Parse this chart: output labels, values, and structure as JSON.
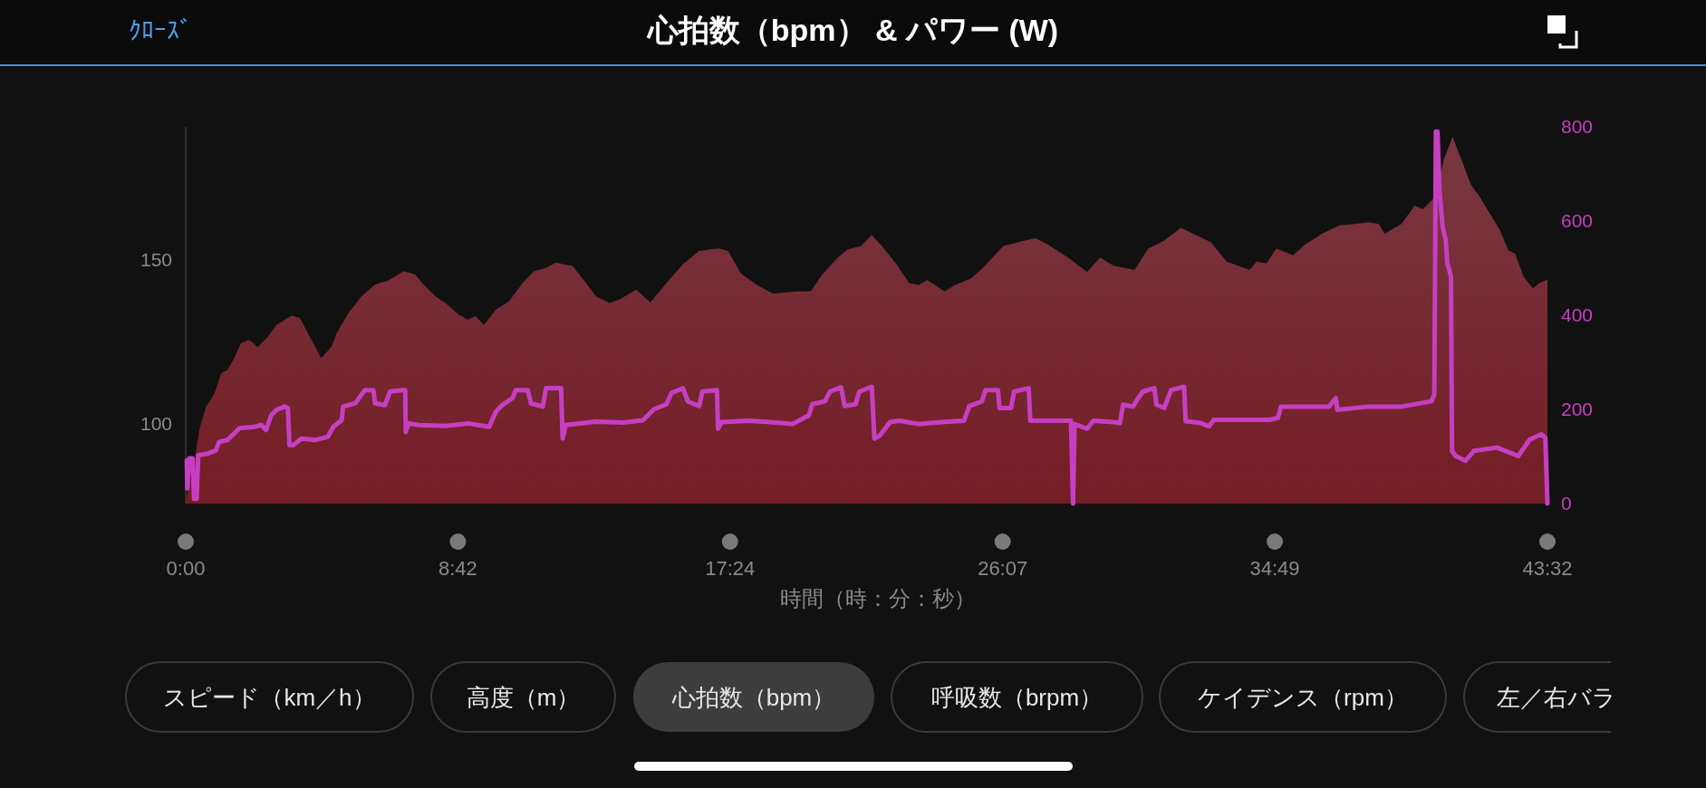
{
  "chart_data": {
    "type": "line",
    "title": "心拍数（bpm） & パワー (W)",
    "xlabel": "時間（時：分：秒）",
    "annotations": [
      "ｸﾛｰｽﾞ",
      "スピード（km／h）",
      "高度（m）",
      "心拍数（bpm）",
      "呼吸数（brpm）",
      "ケイデンス（rpm）",
      "左／右バラ"
    ],
    "xlim": [
      0,
      2612
    ],
    "xticks": [
      {
        "value": 0,
        "label": "0:00"
      },
      {
        "value": 522,
        "label": "8:42"
      },
      {
        "value": 1044,
        "label": "17:24"
      },
      {
        "value": 1567,
        "label": "26:07"
      },
      {
        "value": 2089,
        "label": "34:49"
      },
      {
        "value": 2612,
        "label": "43:32"
      }
    ],
    "ylim": [
      75.5,
      190.8
    ],
    "yticks": [
      100,
      150
    ],
    "y2lim": [
      0,
      800
    ],
    "y2ticks": [
      0,
      200,
      400,
      600,
      800
    ],
    "series": [
      {
        "type": "area",
        "color": "#6d2631",
        "x": [
          0,
          16,
          26,
          39,
          55,
          68,
          80,
          93,
          106,
          122,
          138,
          158,
          174,
          203,
          219,
          238,
          260,
          280,
          289,
          312,
          337,
          363,
          389,
          418,
          440,
          456,
          479,
          498,
          524,
          540,
          556,
          572,
          595,
          620,
          646,
          668,
          691,
          710,
          742,
          768,
          787,
          813,
          832,
          864,
          891,
          922,
          954,
          985,
          1022,
          1040,
          1065,
          1096,
          1127,
          1171,
          1199,
          1220,
          1251,
          1270,
          1295,
          1316,
          1338,
          1363,
          1388,
          1406,
          1422,
          1456,
          1475,
          1506,
          1530,
          1568,
          1605,
          1630,
          1654,
          1692,
          1729,
          1754,
          1779,
          1789,
          1820,
          1846,
          1877,
          1909,
          1940,
          1966,
          1997,
          2041,
          2054,
          2073,
          2092,
          2124,
          2149,
          2180,
          2212,
          2244,
          2269,
          2288,
          2300,
          2332,
          2357,
          2373,
          2392,
          2398,
          2414,
          2430,
          2446,
          2465,
          2483,
          2502,
          2521,
          2537,
          2550,
          2566,
          2584,
          2597,
          2612
        ],
        "values": [
          76.4,
          87.7,
          98.0,
          105.1,
          109.2,
          115.4,
          116.4,
          120.0,
          124.6,
          125.6,
          123.4,
          126.6,
          130.2,
          133.0,
          132.3,
          126.6,
          120.0,
          123.6,
          127.5,
          133.8,
          138.9,
          142.5,
          143.8,
          146.6,
          145.6,
          142.5,
          138.9,
          136.9,
          133.3,
          131.8,
          132.8,
          130.2,
          134.8,
          137.4,
          143.0,
          146.6,
          147.6,
          149.2,
          148.2,
          143.0,
          138.9,
          136.9,
          137.9,
          141.0,
          137.0,
          142.9,
          148.8,
          152.8,
          153.6,
          152.8,
          145.9,
          142.4,
          139.7,
          140.4,
          140.4,
          145.4,
          150.8,
          153.3,
          154.3,
          157.7,
          153.8,
          148.8,
          142.9,
          142.4,
          143.9,
          140.4,
          142.4,
          144.4,
          147.8,
          154.3,
          155.8,
          156.7,
          154.8,
          150.8,
          146.4,
          150.8,
          148.3,
          148.0,
          147.0,
          153.5,
          156.0,
          159.9,
          157.5,
          155.5,
          149.5,
          147.0,
          149.5,
          149.0,
          153.5,
          151.5,
          155.0,
          158.1,
          160.6,
          161.1,
          161.6,
          161.1,
          158.1,
          161.1,
          166.6,
          165.6,
          168.6,
          170.1,
          181.2,
          187.7,
          181.2,
          173.1,
          169.1,
          164.1,
          159.1,
          153.0,
          152.0,
          145.0,
          141.4,
          143.0,
          144.0
        ]
      },
      {
        "axis": "y2",
        "color": "#c63fc2",
        "x": [
          2,
          3,
          7,
          13,
          16,
          21,
          24,
          42,
          58,
          64,
          80,
          93,
          103,
          132,
          145,
          154,
          164,
          174,
          190,
          196,
          199,
          206,
          222,
          248,
          273,
          283,
          299,
          302,
          325,
          337,
          344,
          360,
          363,
          382,
          392,
          415,
          421,
          422,
          427,
          447,
          498,
          543,
          582,
          595,
          607,
          627,
          633,
          656,
          662,
          685,
          691,
          720,
          723,
          729,
          787,
          839,
          877,
          898,
          922,
          932,
          954,
          963,
          985,
          991,
          1019,
          1021,
          1028,
          1078,
          1121,
          1164,
          1195,
          1202,
          1226,
          1236,
          1257,
          1264,
          1285,
          1292,
          1316,
          1321,
          1332,
          1351,
          1369,
          1406,
          1450,
          1493,
          1503,
          1527,
          1534,
          1558,
          1561,
          1583,
          1589,
          1617,
          1620,
          1698,
          1702,
          1705,
          1729,
          1741,
          1779,
          1792,
          1798,
          1817,
          1827,
          1836,
          1858,
          1862,
          1877,
          1890,
          1915,
          1918,
          1947,
          1963,
          1972,
          2016,
          2079,
          2095,
          2101,
          2142,
          2193,
          2206,
          2209,
          2269,
          2332,
          2389,
          2395,
          2398,
          2401,
          2405,
          2411,
          2417,
          2420,
          2427,
          2429,
          2436,
          2455,
          2471,
          2515,
          2547,
          2556,
          2578,
          2600,
          2608,
          2612
        ],
        "values": [
          92,
          32,
          96,
          96,
          10,
          10,
          103,
          106,
          113,
          131,
          135,
          149,
          160,
          163,
          167,
          156,
          188,
          199,
          206,
          202,
          124,
          124,
          138,
          135,
          142,
          163,
          177,
          206,
          213,
          231,
          241,
          241,
          213,
          209,
          238,
          241,
          241,
          152,
          170,
          167,
          165,
          170,
          163,
          195,
          209,
          224,
          241,
          241,
          213,
          206,
          245,
          245,
          138,
          167,
          174,
          172,
          177,
          200,
          211,
          235,
          245,
          217,
          207,
          238,
          241,
          159,
          173,
          176,
          173,
          169,
          187,
          211,
          217,
          238,
          247,
          207,
          211,
          238,
          248,
          138,
          145,
          173,
          176,
          169,
          173,
          176,
          207,
          217,
          241,
          241,
          203,
          203,
          238,
          245,
          176,
          176,
          0,
          169,
          159,
          176,
          173,
          171,
          210,
          206,
          224,
          238,
          245,
          210,
          203,
          241,
          248,
          175,
          171,
          164,
          178,
          178,
          178,
          182,
          206,
          206,
          206,
          224,
          199,
          206,
          206,
          217,
          231,
          790,
          790,
          664,
          587,
          559,
          510,
          482,
          112,
          101,
          91,
          112,
          119,
          105,
          101,
          136,
          147,
          140,
          0
        ]
      }
    ]
  }
}
